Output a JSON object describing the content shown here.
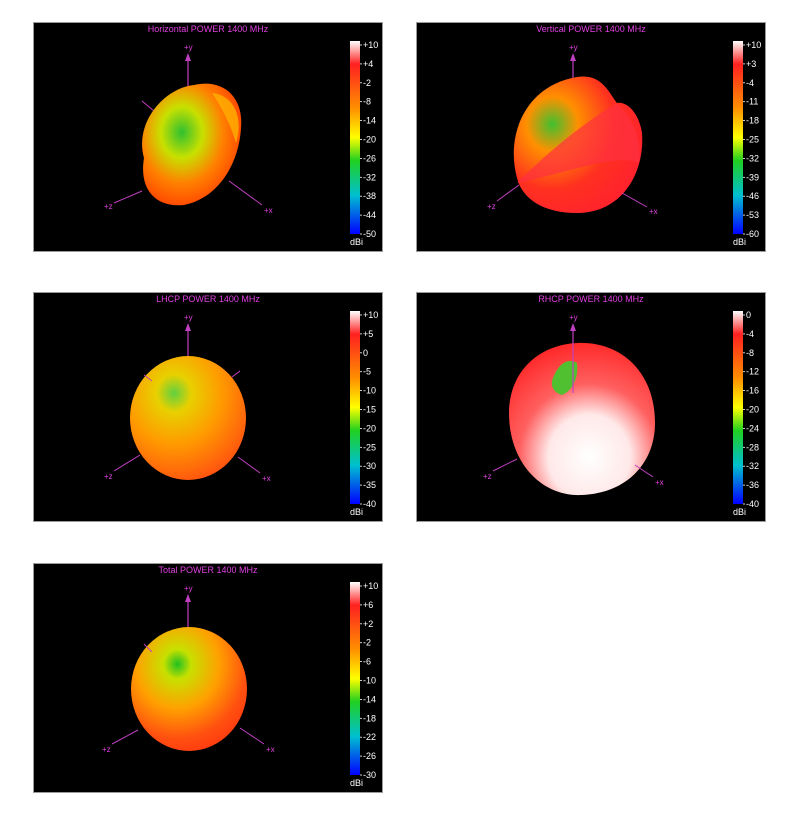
{
  "chart_data": [
    {
      "type": "heatmap",
      "title": "Horizontal POWER 1400  MHz",
      "colorbar": {
        "ticks": [
          "+10",
          "+4",
          "-2",
          "-8",
          "-14",
          "-20",
          "-26",
          "-32",
          "-38",
          "-44",
          "-50"
        ],
        "unit": "dBi",
        "range": [
          -50,
          10
        ]
      },
      "axes": {
        "y": "+y",
        "x": "+x",
        "z": "+z"
      }
    },
    {
      "type": "heatmap",
      "title": "Vertical POWER 1400  MHz",
      "colorbar": {
        "ticks": [
          "+10",
          "+3",
          "-4",
          "-11",
          "-18",
          "-25",
          "-32",
          "-39",
          "-46",
          "-53",
          "-60"
        ],
        "unit": "dBi",
        "range": [
          -60,
          10
        ]
      },
      "axes": {
        "y": "+y",
        "x": "+x",
        "z": "+z"
      }
    },
    {
      "type": "heatmap",
      "title": "LHCP POWER 1400  MHz",
      "colorbar": {
        "ticks": [
          "+10",
          "+5",
          "0",
          "-5",
          "-10",
          "-15",
          "-20",
          "-25",
          "-30",
          "-35",
          "-40"
        ],
        "unit": "dBi",
        "range": [
          -40,
          10
        ]
      },
      "axes": {
        "y": "+y",
        "x": "+x",
        "z": "+z"
      }
    },
    {
      "type": "heatmap",
      "title": "RHCP POWER 1400  MHz",
      "colorbar": {
        "ticks": [
          "0",
          "-4",
          "-8",
          "-12",
          "-16",
          "-20",
          "-24",
          "-28",
          "-32",
          "-36",
          "-40"
        ],
        "unit": "dBi",
        "range": [
          -40,
          0
        ]
      },
      "axes": {
        "y": "+y",
        "x": "+x",
        "z": "+z"
      }
    },
    {
      "type": "heatmap",
      "title": "Total POWER 1400  MHz",
      "colorbar": {
        "ticks": [
          "+10",
          "+6",
          "+2",
          "-2",
          "-6",
          "-10",
          "-14",
          "-18",
          "-22",
          "-26",
          "-30"
        ],
        "unit": "dBi",
        "range": [
          -30,
          10
        ]
      },
      "axes": {
        "y": "+y",
        "x": "+x",
        "z": "+z"
      }
    }
  ]
}
